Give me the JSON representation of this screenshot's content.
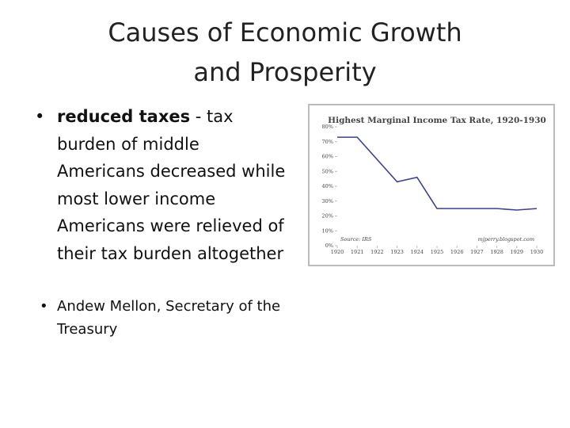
{
  "slide": {
    "title_lines": [
      "Causes of Economic Growth",
      "and Prosperity"
    ],
    "bullets": [
      {
        "bold": "reduced taxes",
        "text": " - tax burden of middle Americans decreased while most lower income Americans were relieved of their tax burden altogether"
      },
      {
        "text": "Andew Mellon, Secretary of the Treasury"
      }
    ]
  },
  "chart_data": {
    "type": "line",
    "title": "Highest Marginal Income Tax Rate, 1920-1930",
    "x": [
      1920,
      1921,
      1922,
      1923,
      1924,
      1925,
      1926,
      1927,
      1928,
      1929,
      1930
    ],
    "values": [
      73,
      73,
      58,
      43,
      46,
      25,
      25,
      25,
      25,
      24,
      25
    ],
    "color": "#3a3f9a",
    "xlim": [
      1920,
      1930
    ],
    "xticks": [
      1920,
      1921,
      1922,
      1923,
      1924,
      1925,
      1926,
      1927,
      1928,
      1929,
      1930
    ],
    "ylim": [
      0,
      80
    ],
    "yticks": [
      {
        "value": 0,
        "label": "0%"
      },
      {
        "value": 10,
        "label": "10%"
      },
      {
        "value": 20,
        "label": "20%"
      },
      {
        "value": 30,
        "label": "30%"
      },
      {
        "value": 40,
        "label": "40%"
      },
      {
        "value": 50,
        "label": "50%"
      },
      {
        "value": 60,
        "label": "60%"
      },
      {
        "value": 70,
        "label": "70%"
      },
      {
        "value": 80,
        "label": "80%"
      }
    ],
    "source": "Source: IRS",
    "credit": "mjperry.blogspot.com"
  }
}
